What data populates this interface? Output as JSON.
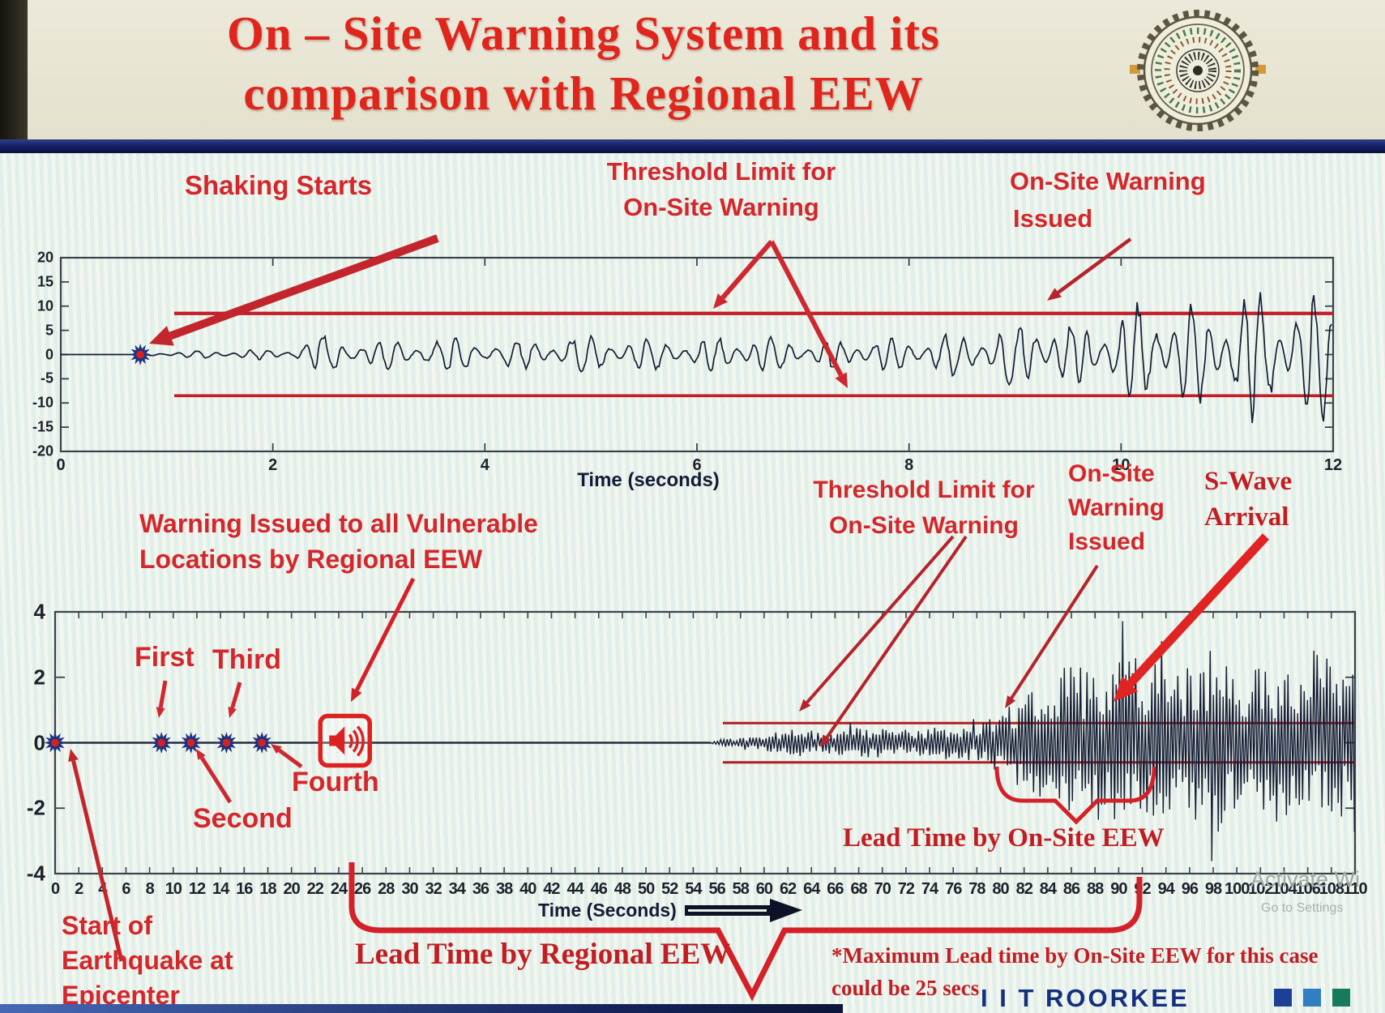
{
  "header": {
    "title_line1": "On – Site Warning System and its",
    "title_line2": "comparison with Regional EEW",
    "logo_name": "IIT Roorkee seal"
  },
  "top_chart_annotations": {
    "shaking_starts": "Shaking Starts",
    "threshold_line1": "Threshold Limit for",
    "threshold_line2": "On-Site Warning",
    "warning_line1": "On-Site Warning",
    "warning_line2": "Issued",
    "xlabel": "Time (seconds)"
  },
  "bottom_chart_annotations": {
    "regional_line1": "Warning Issued to all Vulnerable",
    "regional_line2": "Locations by Regional EEW",
    "threshold_line1": "Threshold Limit for",
    "threshold_line2": "On-Site Warning",
    "onsite_line1": "On-Site",
    "onsite_line2": "Warning",
    "onsite_line3": "Issued",
    "swave_line1": "S-Wave",
    "swave_line2": "Arrival",
    "p1": "First",
    "p2": "Second",
    "p3": "Third",
    "p4": "Fourth",
    "start_line1": "Start of",
    "start_line2": "Earthquake at",
    "start_line3": "Epicenter",
    "lead_regional": "Lead Time by Regional EEW",
    "lead_onsite": "Lead Time by On-Site EEW",
    "max_note_line1": "*Maximum Lead time by On-Site EEW for this case",
    "max_note_line2": "could be 25 secs",
    "xlabel": "Time (Seconds)"
  },
  "footer": {
    "brand": "I I T ROORKEE",
    "square_colors": [
      "#1d3f96",
      "#2f7fc1",
      "#157a5e"
    ],
    "watermark_line1": "Activate Wi",
    "watermark_line2": "Go to Settings"
  },
  "colors": {
    "title_red": "#e0251c",
    "annotation_red": "#d4272c",
    "serif_red": "#c21d22",
    "threshold_red": "#c21d26",
    "trace_navy": "#141c33",
    "star_blue": "#20327e",
    "star_center_red": "#d42222",
    "footer_navy": "#14307e"
  },
  "chart_data": [
    {
      "type": "line",
      "role": "on-site strong-motion seismogram",
      "xlabel": "Time (seconds)",
      "xlim": [
        0,
        12
      ],
      "x_ticks": [
        0,
        2,
        4,
        6,
        8,
        10,
        12
      ],
      "x_tick_labels": [
        "0",
        "2",
        "4",
        "6",
        "8",
        "10",
        "12"
      ],
      "ylim": [
        -20,
        20
      ],
      "y_ticks": [
        20,
        15,
        10,
        5,
        0,
        -5,
        -10,
        -15,
        -20
      ],
      "y_tick_labels": [
        "20",
        "15",
        "10",
        "5",
        "0",
        "-5",
        "-10",
        "-15",
        "-20"
      ],
      "grid": false,
      "legend": "none",
      "threshold_upper": 8.5,
      "threshold_lower": -8.5,
      "threshold_start_time": 1.07,
      "shaking_starts_time": 0.75,
      "onsite_warning_issued_time": 9.3,
      "amplitude_envelope": [
        [
          0.75,
          0.4
        ],
        [
          1.3,
          0.9
        ],
        [
          2.1,
          1.3
        ],
        [
          2.45,
          4.8
        ],
        [
          2.9,
          3.2
        ],
        [
          3.6,
          4.3
        ],
        [
          4.3,
          3.3
        ],
        [
          5.0,
          4.6
        ],
        [
          5.8,
          3.4
        ],
        [
          6.5,
          4.7
        ],
        [
          7.2,
          3.6
        ],
        [
          8.0,
          4.2
        ],
        [
          8.6,
          5.2
        ],
        [
          9.2,
          9.2
        ],
        [
          9.6,
          7.0
        ],
        [
          10.0,
          10.5
        ],
        [
          10.4,
          14.0
        ],
        [
          10.8,
          11.0
        ],
        [
          11.2,
          15.5
        ],
        [
          11.6,
          12.5
        ],
        [
          11.9,
          16.5
        ],
        [
          12.0,
          12.0
        ]
      ]
    },
    {
      "type": "line",
      "role": "regional vs on-site EEW timeline seismogram",
      "xlabel": "Time (Seconds)",
      "xlim": [
        0,
        110
      ],
      "x_tick_step": 2,
      "x_tick_labels": [
        "0",
        "2",
        "4",
        "6",
        "8",
        "10",
        "12",
        "14",
        "16",
        "18",
        "20",
        "22",
        "24",
        "26",
        "28",
        "30",
        "32",
        "34",
        "36",
        "38",
        "40",
        "42",
        "44",
        "46",
        "48",
        "50",
        "52",
        "54",
        "56",
        "58",
        "60",
        "62",
        "64",
        "66",
        "68",
        "70",
        "72",
        "74",
        "76",
        "78",
        "80",
        "82",
        "84",
        "86",
        "88",
        "90",
        "92",
        "94",
        "96",
        "98",
        "100",
        "102",
        "104",
        "106",
        "108",
        "110"
      ],
      "ylim": [
        -4,
        4
      ],
      "y_ticks": [
        4,
        2,
        0,
        -2,
        -4
      ],
      "y_tick_labels": [
        "4",
        "2",
        "0",
        "-2",
        "-4"
      ],
      "grid": false,
      "legend": "none",
      "threshold_upper": 0.6,
      "threshold_lower": -0.6,
      "threshold_start_time": 56.5,
      "epicenter_star_time": 0,
      "p_wave_detection_times": [
        9,
        11.5,
        14.5,
        17.5
      ],
      "regional_warning_time": 24.5,
      "trace_start_time": 55.5,
      "onsite_warning_issued_time": 80,
      "s_wave_arrival_time": 89,
      "lead_time_onsite_span": [
        80,
        93
      ],
      "lead_time_regional_span": [
        25,
        92
      ],
      "amplitude_envelope": [
        [
          55.5,
          0.06
        ],
        [
          58,
          0.15
        ],
        [
          60,
          0.26
        ],
        [
          63,
          0.46
        ],
        [
          65,
          0.3
        ],
        [
          67,
          0.42
        ],
        [
          69,
          0.5
        ],
        [
          71,
          0.35
        ],
        [
          73,
          0.45
        ],
        [
          75,
          0.5
        ],
        [
          77,
          0.55
        ],
        [
          79,
          0.7
        ],
        [
          80,
          0.95
        ],
        [
          82,
          1.5
        ],
        [
          84,
          1.9
        ],
        [
          86,
          2.5
        ],
        [
          88,
          2.1
        ],
        [
          90,
          3.0
        ],
        [
          92,
          2.6
        ],
        [
          94,
          3.1
        ],
        [
          96,
          2.3
        ],
        [
          98,
          2.9
        ],
        [
          100,
          2.1
        ],
        [
          103,
          2.5
        ],
        [
          106,
          1.9
        ],
        [
          110,
          2.3
        ]
      ]
    }
  ]
}
